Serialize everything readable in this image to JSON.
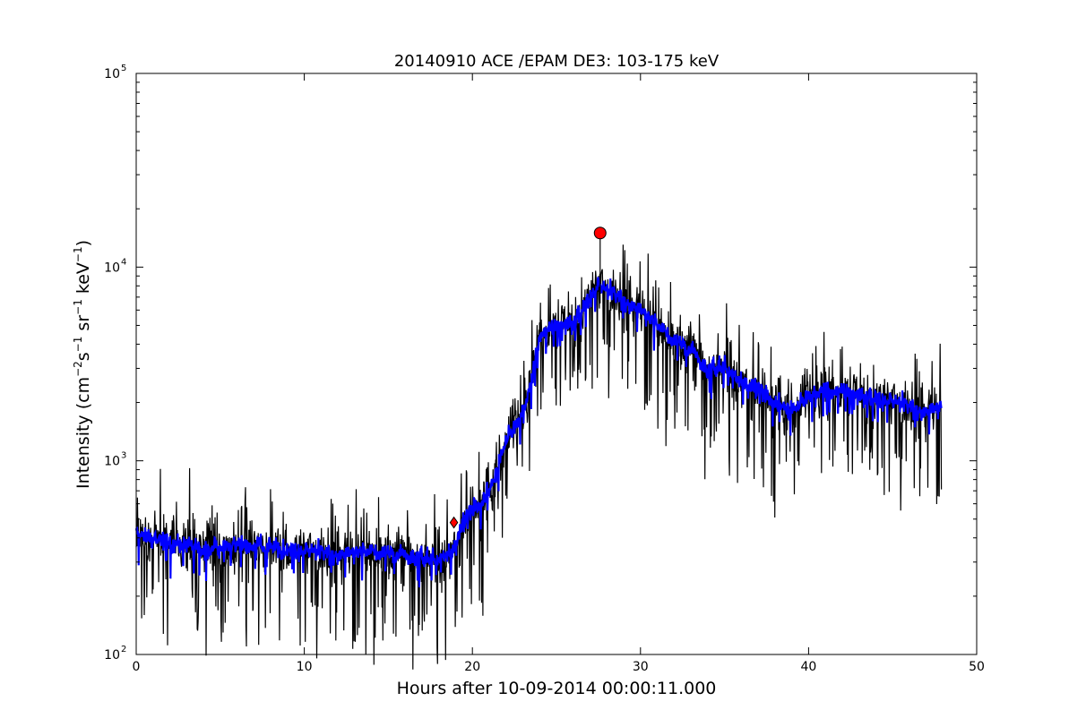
{
  "chart_data": {
    "type": "line",
    "title": "20140910 ACE /EPAM DE3: 103-175 keV",
    "xlabel": "Hours after 10-09-2014 00:00:11.000",
    "ylabel": {
      "prefix": "Intensity (cm",
      "sup1": "−2",
      "mid1": "s",
      "sup2": "−1",
      "mid2": " sr",
      "sup3": "−1",
      "mid3": " keV",
      "sup4": "−1",
      "suffix": ")"
    },
    "xlim": [
      0,
      50
    ],
    "ylim": [
      100,
      100000
    ],
    "yscale": "log",
    "grid": false,
    "xticks": [
      0,
      10,
      20,
      30,
      40,
      50
    ],
    "xtick_labels": [
      "0",
      "10",
      "20",
      "30",
      "40",
      "50"
    ],
    "yticks": [
      {
        "value": 100,
        "base": "10",
        "exp": "2"
      },
      {
        "value": 1000,
        "base": "10",
        "exp": "3"
      },
      {
        "value": 10000,
        "base": "10",
        "exp": "4"
      },
      {
        "value": 100000,
        "base": "10",
        "exp": "5"
      }
    ],
    "series": [
      {
        "kind": "raw",
        "color": "#000000",
        "x_range": [
          0,
          47.9
        ],
        "envelope": {
          "hours": [
            0,
            2,
            4,
            6,
            8,
            10,
            12,
            14,
            16,
            17,
            18,
            18.8,
            19.5,
            20,
            20.5,
            21,
            21.5,
            22,
            22.5,
            23,
            23.5,
            24,
            25,
            26,
            26.5,
            27,
            27.5,
            28,
            29,
            30,
            31,
            32,
            33,
            34,
            35,
            36,
            37,
            38,
            39,
            40,
            41,
            42,
            43,
            44,
            45,
            46,
            47,
            47.9
          ],
          "median": [
            420,
            380,
            350,
            370,
            360,
            340,
            330,
            340,
            330,
            320,
            310,
            330,
            480,
            560,
            600,
            700,
            900,
            1300,
            1500,
            1800,
            2500,
            4500,
            5000,
            5200,
            6000,
            7000,
            8000,
            7500,
            6800,
            6000,
            5000,
            4200,
            3800,
            3000,
            3100,
            2500,
            2300,
            2000,
            1800,
            2200,
            2300,
            2300,
            2200,
            2100,
            2000,
            1900,
            1800,
            1900
          ]
        }
      },
      {
        "kind": "smoothed",
        "color": "#0000ff",
        "x_range": [
          0,
          47.9
        ]
      }
    ],
    "markers": [
      {
        "shape": "diamond",
        "x": 18.9,
        "y": 480,
        "color": "#ff0000"
      },
      {
        "shape": "circle",
        "x": 27.6,
        "y": 15000,
        "color": "#ff0000"
      }
    ]
  }
}
